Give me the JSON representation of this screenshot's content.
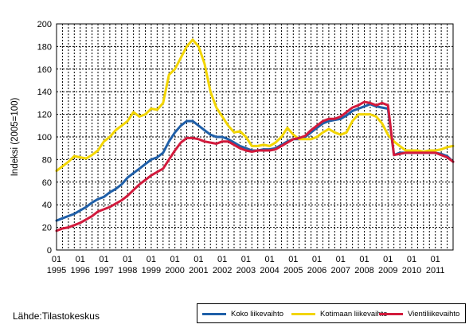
{
  "chart_data": {
    "type": "line",
    "title": "",
    "xlabel": "",
    "ylabel": "Indeksi (2005=100)",
    "ylim": [
      0,
      200
    ],
    "yticks": [
      0,
      20,
      40,
      60,
      80,
      100,
      120,
      140,
      160,
      180,
      200
    ],
    "x_start": 1995,
    "x_end": 2011.75,
    "x_tick_quarter_label": "01",
    "x_tick_years": [
      "1995",
      "1996",
      "1997",
      "1998",
      "1999",
      "2000",
      "2001",
      "2002",
      "2003",
      "2004",
      "2005",
      "2006",
      "2007",
      "2008",
      "2009",
      "2010",
      "2011"
    ],
    "grid": true,
    "legend_position": "bottom-right",
    "series": [
      {
        "name": "Koko liikevaihto",
        "color": "#1f5fa8",
        "x": [
          1995.0,
          1995.25,
          1995.5,
          1995.75,
          1996.0,
          1996.25,
          1996.5,
          1996.75,
          1997.0,
          1997.25,
          1997.5,
          1997.75,
          1998.0,
          1998.25,
          1998.5,
          1998.75,
          1999.0,
          1999.25,
          1999.5,
          1999.75,
          2000.0,
          2000.25,
          2000.5,
          2000.75,
          2001.0,
          2001.25,
          2001.5,
          2001.75,
          2002.0,
          2002.25,
          2002.5,
          2002.75,
          2003.0,
          2003.25,
          2003.5,
          2003.75,
          2004.0,
          2004.25,
          2004.5,
          2004.75,
          2005.0,
          2005.25,
          2005.5,
          2005.75,
          2006.0,
          2006.25,
          2006.5,
          2006.75,
          2007.0,
          2007.25,
          2007.5,
          2007.75,
          2008.0,
          2008.25,
          2008.5,
          2008.75,
          2009.0,
          2009.25,
          2009.5,
          2009.75,
          2010.0,
          2010.25,
          2010.5,
          2010.75,
          2011.0,
          2011.25,
          2011.5,
          2011.75
        ],
        "values": [
          26,
          28,
          30,
          32,
          35,
          38,
          42,
          45,
          47,
          51,
          54,
          58,
          64,
          68,
          72,
          76,
          80,
          82,
          86,
          96,
          104,
          110,
          114,
          114,
          110,
          106,
          102,
          100,
          100,
          98,
          95,
          92,
          90,
          88,
          88,
          89,
          89,
          90,
          93,
          96,
          98,
          98,
          100,
          104,
          108,
          112,
          114,
          115,
          116,
          119,
          123,
          125,
          127,
          129,
          127,
          126,
          125,
          84,
          86,
          86,
          86,
          86,
          86,
          86,
          86,
          85,
          83,
          78
        ]
      },
      {
        "name": "Kotimaan liikevaihto",
        "color": "#f2d500",
        "x": [
          1995.0,
          1995.25,
          1995.5,
          1995.75,
          1996.0,
          1996.25,
          1996.5,
          1996.75,
          1997.0,
          1997.25,
          1997.5,
          1997.75,
          1998.0,
          1998.25,
          1998.5,
          1998.75,
          1999.0,
          1999.25,
          1999.5,
          1999.75,
          2000.0,
          2000.25,
          2000.5,
          2000.75,
          2001.0,
          2001.25,
          2001.5,
          2001.75,
          2002.0,
          2002.25,
          2002.5,
          2002.75,
          2003.0,
          2003.25,
          2003.5,
          2003.75,
          2004.0,
          2004.25,
          2004.5,
          2004.75,
          2005.0,
          2005.25,
          2005.5,
          2005.75,
          2006.0,
          2006.25,
          2006.5,
          2006.75,
          2007.0,
          2007.25,
          2007.5,
          2007.75,
          2008.0,
          2008.25,
          2008.5,
          2008.75,
          2009.0,
          2009.25,
          2009.5,
          2009.75,
          2010.0,
          2010.25,
          2010.5,
          2010.75,
          2011.0,
          2011.25,
          2011.5,
          2011.75
        ],
        "values": [
          70,
          74,
          78,
          83,
          82,
          81,
          84,
          88,
          96,
          100,
          106,
          110,
          114,
          122,
          118,
          120,
          125,
          124,
          130,
          155,
          160,
          170,
          180,
          186,
          180,
          165,
          140,
          126,
          118,
          110,
          104,
          105,
          100,
          92,
          92,
          93,
          92,
          95,
          100,
          108,
          102,
          98,
          98,
          98,
          100,
          104,
          107,
          104,
          102,
          104,
          114,
          120,
          120,
          120,
          118,
          112,
          102,
          96,
          92,
          88,
          88,
          88,
          87,
          88,
          88,
          89,
          91,
          92
        ]
      },
      {
        "name": "Vientiliikevaihto",
        "color": "#d21a3c",
        "x": [
          1995.0,
          1995.25,
          1995.5,
          1995.75,
          1996.0,
          1996.25,
          1996.5,
          1996.75,
          1997.0,
          1997.25,
          1997.5,
          1997.75,
          1998.0,
          1998.25,
          1998.5,
          1998.75,
          1999.0,
          1999.25,
          1999.5,
          1999.75,
          2000.0,
          2000.25,
          2000.5,
          2000.75,
          2001.0,
          2001.25,
          2001.5,
          2001.75,
          2002.0,
          2002.25,
          2002.5,
          2002.75,
          2003.0,
          2003.25,
          2003.5,
          2003.75,
          2004.0,
          2004.25,
          2004.5,
          2004.75,
          2005.0,
          2005.25,
          2005.5,
          2005.75,
          2006.0,
          2006.25,
          2006.5,
          2006.75,
          2007.0,
          2007.25,
          2007.5,
          2007.75,
          2008.0,
          2008.25,
          2008.5,
          2008.75,
          2009.0,
          2009.25,
          2009.5,
          2009.75,
          2010.0,
          2010.25,
          2010.5,
          2010.75,
          2011.0,
          2011.25,
          2011.5,
          2011.75
        ],
        "values": [
          17,
          19,
          20,
          22,
          24,
          27,
          30,
          34,
          36,
          38,
          41,
          44,
          48,
          53,
          58,
          62,
          66,
          69,
          72,
          80,
          88,
          95,
          99,
          99,
          98,
          96,
          95,
          94,
          96,
          96,
          93,
          90,
          88,
          87,
          88,
          88,
          88,
          89,
          92,
          95,
          98,
          99,
          101,
          106,
          110,
          114,
          116,
          116,
          118,
          122,
          126,
          128,
          131,
          130,
          128,
          130,
          128,
          84,
          85,
          86,
          86,
          86,
          86,
          86,
          86,
          84,
          82,
          78
        ]
      }
    ]
  },
  "source": "Lähde:Tilastokeskus"
}
